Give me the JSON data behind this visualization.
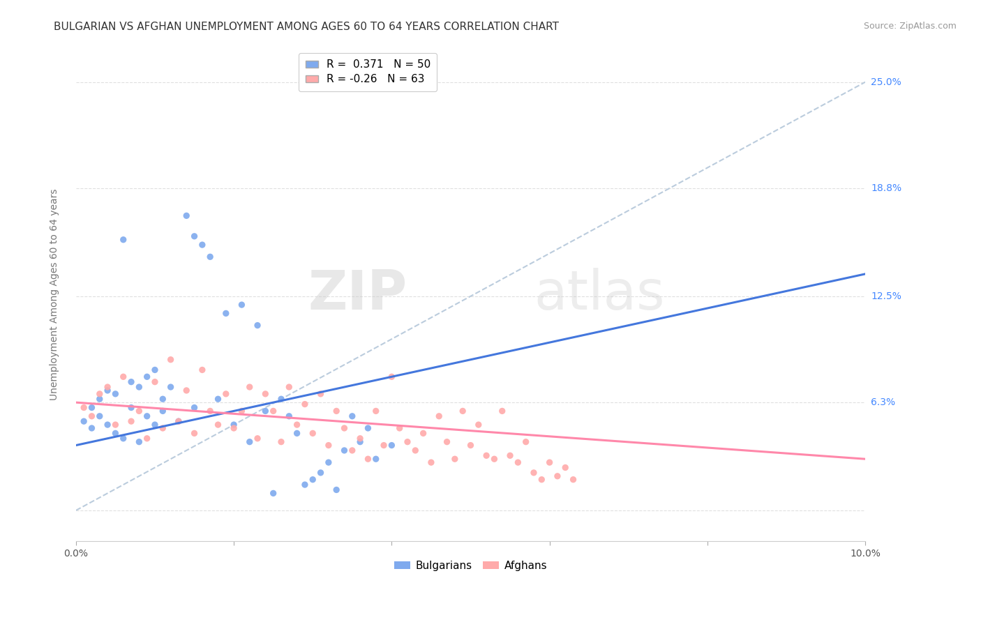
{
  "title": "BULGARIAN VS AFGHAN UNEMPLOYMENT AMONG AGES 60 TO 64 YEARS CORRELATION CHART",
  "source": "Source: ZipAtlas.com",
  "ylabel": "Unemployment Among Ages 60 to 64 years",
  "xlim": [
    0.0,
    0.1
  ],
  "ylim": [
    -0.018,
    0.27
  ],
  "bulgarian_color": "#7FAAEE",
  "afghan_color": "#FFAAAA",
  "bulgarian_line_color": "#4477DD",
  "afghan_line_color": "#FF88AA",
  "ref_line_color": "#BBCCDD",
  "R_bulgarian": 0.371,
  "N_bulgarian": 50,
  "R_afghan": -0.26,
  "N_afghan": 63,
  "bulgarians_x": [
    0.001,
    0.002,
    0.002,
    0.003,
    0.003,
    0.004,
    0.004,
    0.005,
    0.005,
    0.006,
    0.006,
    0.007,
    0.007,
    0.008,
    0.008,
    0.009,
    0.009,
    0.01,
    0.01,
    0.011,
    0.011,
    0.012,
    0.013,
    0.014,
    0.015,
    0.015,
    0.016,
    0.017,
    0.018,
    0.019,
    0.02,
    0.021,
    0.022,
    0.023,
    0.024,
    0.025,
    0.026,
    0.027,
    0.028,
    0.029,
    0.03,
    0.031,
    0.032,
    0.033,
    0.034,
    0.035,
    0.036,
    0.037,
    0.038,
    0.04
  ],
  "bulgarians_y": [
    0.052,
    0.048,
    0.06,
    0.055,
    0.065,
    0.05,
    0.07,
    0.045,
    0.068,
    0.042,
    0.158,
    0.06,
    0.075,
    0.04,
    0.072,
    0.055,
    0.078,
    0.05,
    0.082,
    0.058,
    0.065,
    0.072,
    0.052,
    0.172,
    0.06,
    0.16,
    0.155,
    0.148,
    0.065,
    0.115,
    0.05,
    0.12,
    0.04,
    0.108,
    0.058,
    0.01,
    0.065,
    0.055,
    0.045,
    0.015,
    0.018,
    0.022,
    0.028,
    0.012,
    0.035,
    0.055,
    0.04,
    0.048,
    0.03,
    0.038
  ],
  "afghans_x": [
    0.001,
    0.002,
    0.003,
    0.004,
    0.005,
    0.006,
    0.007,
    0.008,
    0.009,
    0.01,
    0.011,
    0.012,
    0.013,
    0.014,
    0.015,
    0.016,
    0.017,
    0.018,
    0.019,
    0.02,
    0.021,
    0.022,
    0.023,
    0.024,
    0.025,
    0.026,
    0.027,
    0.028,
    0.029,
    0.03,
    0.031,
    0.032,
    0.033,
    0.034,
    0.035,
    0.036,
    0.037,
    0.038,
    0.039,
    0.04,
    0.041,
    0.042,
    0.043,
    0.044,
    0.045,
    0.046,
    0.047,
    0.048,
    0.049,
    0.05,
    0.051,
    0.052,
    0.053,
    0.054,
    0.055,
    0.056,
    0.057,
    0.058,
    0.059,
    0.06,
    0.061,
    0.062,
    0.063
  ],
  "afghans_y": [
    0.06,
    0.055,
    0.068,
    0.072,
    0.05,
    0.078,
    0.052,
    0.058,
    0.042,
    0.075,
    0.048,
    0.088,
    0.052,
    0.07,
    0.045,
    0.082,
    0.058,
    0.05,
    0.068,
    0.048,
    0.058,
    0.072,
    0.042,
    0.068,
    0.058,
    0.04,
    0.072,
    0.05,
    0.062,
    0.045,
    0.068,
    0.038,
    0.058,
    0.048,
    0.035,
    0.042,
    0.03,
    0.058,
    0.038,
    0.078,
    0.048,
    0.04,
    0.035,
    0.045,
    0.028,
    0.055,
    0.04,
    0.03,
    0.058,
    0.038,
    0.05,
    0.032,
    0.03,
    0.058,
    0.032,
    0.028,
    0.04,
    0.022,
    0.018,
    0.028,
    0.02,
    0.025,
    0.018
  ],
  "watermark_zip": "ZIP",
  "watermark_atlas": "atlas",
  "background_color": "#FFFFFF",
  "plot_bg_color": "#FFFFFF",
  "grid_color": "#E0E0E0",
  "title_fontsize": 11,
  "axis_label_fontsize": 10,
  "tick_fontsize": 10,
  "legend_fontsize": 11
}
